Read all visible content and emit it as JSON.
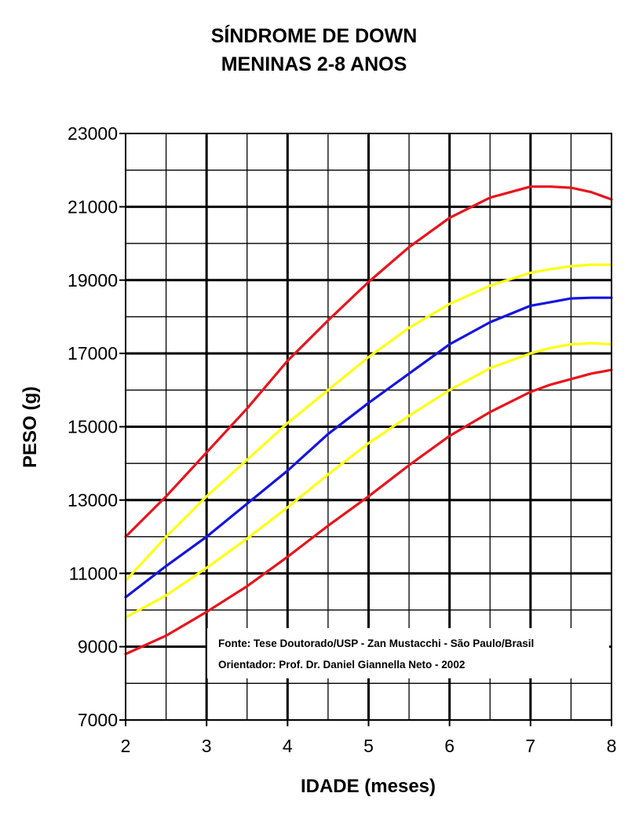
{
  "chart_data": {
    "type": "line",
    "title": [
      "SÍNDROME DE DOWN",
      "MENINAS 2-8 ANOS"
    ],
    "xlabel": "IDADE (meses)",
    "ylabel": "PESO (g)",
    "xlim": [
      2,
      8
    ],
    "ylim": [
      7000,
      23000
    ],
    "x_ticks": [
      "2",
      "3",
      "4",
      "5",
      "6",
      "7",
      "8"
    ],
    "y_ticks": [
      "7000",
      "9000",
      "11000",
      "13000",
      "15000",
      "17000",
      "19000",
      "21000",
      "23000"
    ],
    "grid": true,
    "annotation": [
      "Fonte: Tese Doutorado/USP - Zan Mustacchi - São Paulo/Brasil",
      "Orientador: Prof. Dr. Daniel Giannella Neto - 2002"
    ],
    "x": [
      2,
      2.5,
      3,
      3.5,
      4,
      4.5,
      5,
      5.5,
      6,
      6.5,
      7,
      7.25,
      7.5,
      7.75,
      8
    ],
    "series": [
      {
        "color": "#e8141c",
        "values": [
          12000,
          13100,
          14300,
          15500,
          16800,
          17900,
          18950,
          19900,
          20700,
          21250,
          21550,
          21550,
          21520,
          21400,
          21200
        ]
      },
      {
        "color": "#ffff14",
        "values": [
          10800,
          12000,
          13100,
          14100,
          15100,
          16000,
          16900,
          17700,
          18350,
          18850,
          19200,
          19300,
          19380,
          19420,
          19420
        ]
      },
      {
        "color": "#1414e0",
        "values": [
          10350,
          11200,
          12000,
          12900,
          13800,
          14800,
          15650,
          16450,
          17250,
          17850,
          18300,
          18400,
          18500,
          18520,
          18520
        ]
      },
      {
        "color": "#ffff14",
        "values": [
          9800,
          10400,
          11150,
          11950,
          12800,
          13700,
          14550,
          15300,
          16000,
          16600,
          17000,
          17150,
          17250,
          17280,
          17250
        ]
      },
      {
        "color": "#e8141c",
        "values": [
          8800,
          9300,
          9950,
          10650,
          11450,
          12300,
          13100,
          13950,
          14750,
          15400,
          15950,
          16150,
          16300,
          16450,
          16550
        ]
      }
    ]
  }
}
